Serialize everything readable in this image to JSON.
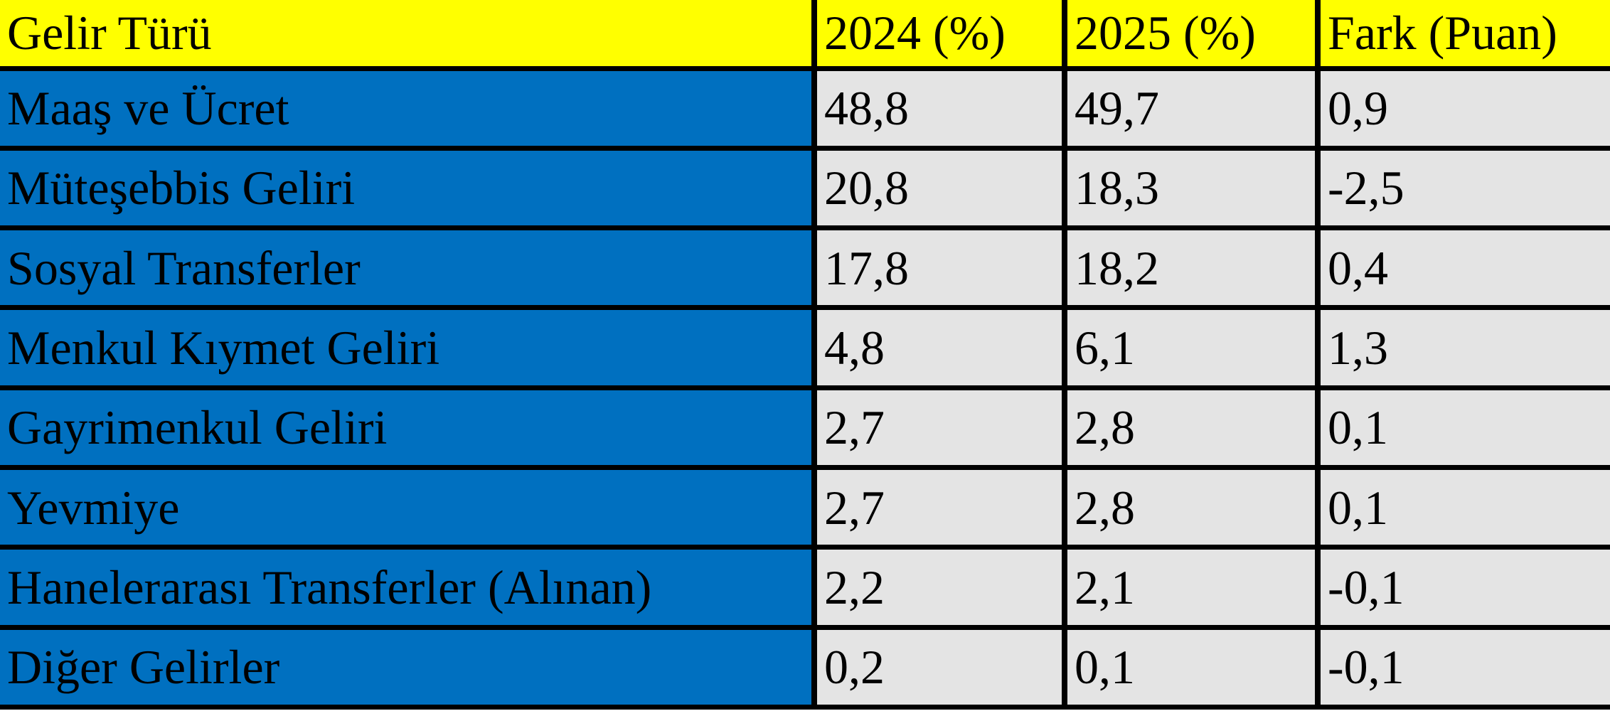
{
  "table": {
    "headers": [
      "Gelir Türü",
      "2024 (%)",
      "2025 (%)",
      "Fark (Puan)"
    ],
    "rows": [
      {
        "label": "Maaş ve Ücret",
        "values": [
          "48,8",
          "49,7",
          "0,9"
        ]
      },
      {
        "label": "Müteşebbis Geliri",
        "values": [
          "20,8",
          "18,3",
          "-2,5"
        ]
      },
      {
        "label": "Sosyal Transferler",
        "values": [
          "17,8",
          "18,2",
          "0,4"
        ]
      },
      {
        "label": "Menkul Kıymet Geliri",
        "values": [
          "4,8",
          "6,1",
          "1,3"
        ]
      },
      {
        "label": "Gayrimenkul Geliri",
        "values": [
          "2,7",
          "2,8",
          "0,1"
        ]
      },
      {
        "label": "Yevmiye",
        "values": [
          "2,7",
          "2,8",
          "0,1"
        ]
      },
      {
        "label": "Hanelerarası Transferler (Alınan)",
        "values": [
          "2,2",
          "2,1",
          "-0,1"
        ]
      },
      {
        "label": "Diğer Gelirler",
        "values": [
          "0,2",
          "0,1",
          "-0,1"
        ]
      }
    ]
  },
  "colors": {
    "header_bg": "#FFFF00",
    "label_column_bg": "#0070C0",
    "value_cell_bg": "#E4E4E4",
    "border": "#000000",
    "text": "#000000"
  }
}
